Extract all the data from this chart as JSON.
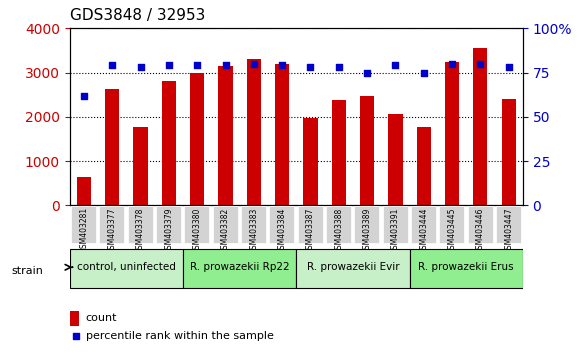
{
  "title": "GDS3848 / 32953",
  "samples": [
    "GSM403281",
    "GSM403377",
    "GSM403378",
    "GSM403379",
    "GSM403380",
    "GSM403382",
    "GSM403383",
    "GSM403384",
    "GSM403387",
    "GSM403388",
    "GSM403389",
    "GSM403391",
    "GSM403444",
    "GSM403445",
    "GSM403446",
    "GSM403447"
  ],
  "counts": [
    650,
    2620,
    1760,
    2800,
    3000,
    3150,
    3300,
    3200,
    1980,
    2370,
    2480,
    2060,
    1760,
    3230,
    3550,
    2400
  ],
  "percentiles": [
    62,
    79,
    78,
    79,
    79,
    79,
    80,
    79,
    78,
    78,
    75,
    79,
    75,
    80,
    80,
    78
  ],
  "bar_color": "#cc0000",
  "dot_color": "#0000cc",
  "groups": [
    {
      "label": "control, uninfected",
      "start": 0,
      "end": 4,
      "color": "#90ee90"
    },
    {
      "label": "R. prowazekii Rp22",
      "start": 4,
      "end": 8,
      "color": "#90ee90"
    },
    {
      "label": "R. prowazekii Evir",
      "start": 8,
      "end": 12,
      "color": "#90ee90"
    },
    {
      "label": "R. prowazekii Erus",
      "start": 12,
      "end": 16,
      "color": "#90ee90"
    }
  ],
  "ylim_left": [
    0,
    4000
  ],
  "ylim_right": [
    0,
    100
  ],
  "yticks_left": [
    0,
    1000,
    2000,
    3000,
    4000
  ],
  "yticks_right": [
    0,
    25,
    50,
    75,
    100
  ],
  "ylabel_left_color": "#cc0000",
  "ylabel_right_color": "#0000cc",
  "legend_count_label": "count",
  "legend_pct_label": "percentile rank within the sample",
  "strain_label": "strain",
  "background_plot": "#ffffff",
  "background_xticklabels": "#e0e0e0",
  "group_border_color": "#000000"
}
